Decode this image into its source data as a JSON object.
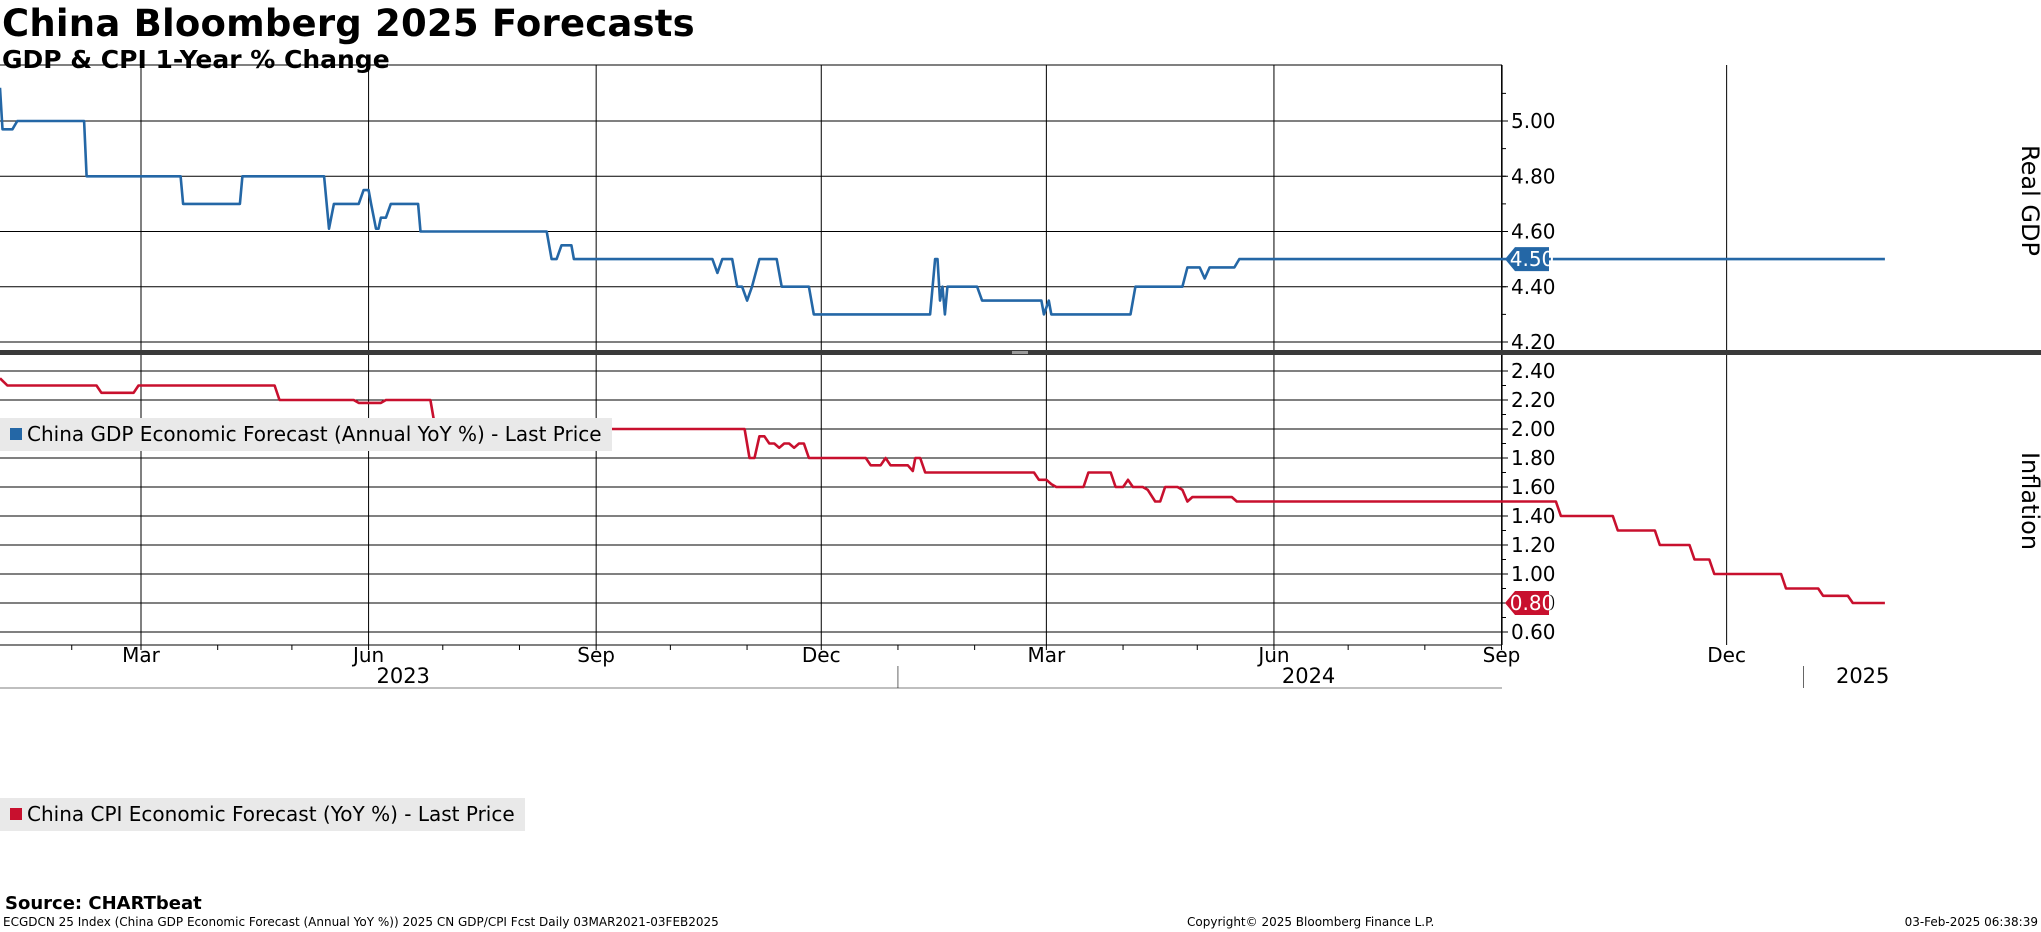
{
  "title": "China Bloomberg 2025 Forecasts",
  "subtitle": "GDP & CPI 1-Year % Change",
  "source": "Source: CHARTbeat",
  "footer": {
    "left": "ECGDCN 25 Index (China GDP Economic Forecast (Annual YoY %)) 2025 CN GDP/CPI Fcst  Daily 03MAR2021-03FEB2025",
    "center": "Copyright© 2025 Bloomberg Finance L.P.",
    "right": "03-Feb-2025 06:38:39"
  },
  "colors": {
    "gdp": "#2467a6",
    "cpi": "#c8102e",
    "legend_bg": "#e9e9e9",
    "grid": "#000000"
  },
  "chart_data": [
    {
      "type": "line",
      "ylabel": "Real GDP",
      "ylim": [
        4.17,
        5.2
      ],
      "yticks": [
        "4.20",
        "4.40",
        "4.60",
        "4.80",
        "5.00"
      ],
      "legend": "China GDP Economic Forecast (Annual YoY %) - Last Price",
      "last_value": "4.50",
      "series": [
        {
          "name": "China GDP Economic Forecast (Annual YoY %) - Last Price",
          "points": [
            [
              "2023-01-03",
              5.12
            ],
            [
              "2023-01-04",
              4.97
            ],
            [
              "2023-01-08",
              4.97
            ],
            [
              "2023-01-10",
              5.0
            ],
            [
              "2023-02-06",
              5.0
            ],
            [
              "2023-02-07",
              4.8
            ],
            [
              "2023-03-17",
              4.8
            ],
            [
              "2023-03-18",
              4.7
            ],
            [
              "2023-04-10",
              4.7
            ],
            [
              "2023-04-11",
              4.8
            ],
            [
              "2023-05-14",
              4.8
            ],
            [
              "2023-05-16",
              4.61
            ],
            [
              "2023-05-18",
              4.7
            ],
            [
              "2023-05-28",
              4.7
            ],
            [
              "2023-05-30",
              4.75
            ],
            [
              "2023-06-01",
              4.75
            ],
            [
              "2023-06-02",
              4.7
            ],
            [
              "2023-06-04",
              4.61
            ],
            [
              "2023-06-05",
              4.61
            ],
            [
              "2023-06-06",
              4.65
            ],
            [
              "2023-06-08",
              4.65
            ],
            [
              "2023-06-10",
              4.7
            ],
            [
              "2023-06-21",
              4.7
            ],
            [
              "2023-06-22",
              4.6
            ],
            [
              "2023-08-12",
              4.6
            ],
            [
              "2023-08-14",
              4.5
            ],
            [
              "2023-08-16",
              4.5
            ],
            [
              "2023-08-18",
              4.55
            ],
            [
              "2023-08-22",
              4.55
            ],
            [
              "2023-08-23",
              4.5
            ],
            [
              "2023-10-18",
              4.5
            ],
            [
              "2023-10-20",
              4.45
            ],
            [
              "2023-10-22",
              4.5
            ],
            [
              "2023-10-26",
              4.5
            ],
            [
              "2023-10-28",
              4.4
            ],
            [
              "2023-10-30",
              4.4
            ],
            [
              "2023-11-01",
              4.35
            ],
            [
              "2023-11-03",
              4.4
            ],
            [
              "2023-11-06",
              4.5
            ],
            [
              "2023-11-13",
              4.5
            ],
            [
              "2023-11-15",
              4.4
            ],
            [
              "2023-11-26",
              4.4
            ],
            [
              "2023-11-28",
              4.3
            ],
            [
              "2024-01-14",
              4.3
            ],
            [
              "2024-01-16",
              4.5
            ],
            [
              "2024-01-17",
              4.5
            ],
            [
              "2024-01-18",
              4.35
            ],
            [
              "2024-01-19",
              4.4
            ],
            [
              "2024-01-20",
              4.3
            ],
            [
              "2024-01-21",
              4.4
            ],
            [
              "2024-02-02",
              4.4
            ],
            [
              "2024-02-04",
              4.35
            ],
            [
              "2024-02-28",
              4.35
            ],
            [
              "2024-02-29",
              4.3
            ],
            [
              "2024-03-02",
              4.35
            ],
            [
              "2024-03-03",
              4.3
            ],
            [
              "2024-04-04",
              4.3
            ],
            [
              "2024-04-06",
              4.4
            ],
            [
              "2024-04-25",
              4.4
            ],
            [
              "2024-04-27",
              4.47
            ],
            [
              "2024-05-02",
              4.47
            ],
            [
              "2024-05-04",
              4.43
            ],
            [
              "2024-05-06",
              4.47
            ],
            [
              "2024-05-16",
              4.47
            ],
            [
              "2024-05-18",
              4.5
            ],
            [
              "2025-02-03",
              4.5
            ]
          ]
        }
      ]
    },
    {
      "type": "line",
      "ylabel": "Inflation",
      "ylim": [
        0.57,
        2.48
      ],
      "yticks": [
        "0.60",
        "0.80",
        "1.00",
        "1.20",
        "1.40",
        "1.60",
        "1.80",
        "2.00",
        "2.20",
        "2.40"
      ],
      "legend": "China CPI Economic Forecast (YoY %) - Last Price",
      "last_value": "0.80",
      "series": [
        {
          "name": "China CPI Economic Forecast (YoY %) - Last Price",
          "points": [
            [
              "2023-01-03",
              2.35
            ],
            [
              "2023-01-06",
              2.3
            ],
            [
              "2023-02-11",
              2.3
            ],
            [
              "2023-02-13",
              2.25
            ],
            [
              "2023-02-26",
              2.25
            ],
            [
              "2023-02-28",
              2.3
            ],
            [
              "2023-04-24",
              2.3
            ],
            [
              "2023-04-26",
              2.2
            ],
            [
              "2023-05-26",
              2.2
            ],
            [
              "2023-05-28",
              2.18
            ],
            [
              "2023-06-06",
              2.18
            ],
            [
              "2023-06-08",
              2.2
            ],
            [
              "2023-06-26",
              2.2
            ],
            [
              "2023-06-28",
              2.0
            ],
            [
              "2023-10-31",
              2.0
            ],
            [
              "2023-11-02",
              1.8
            ],
            [
              "2023-11-04",
              1.8
            ],
            [
              "2023-11-06",
              1.95
            ],
            [
              "2023-11-08",
              1.95
            ],
            [
              "2023-11-10",
              1.9
            ],
            [
              "2023-11-12",
              1.9
            ],
            [
              "2023-11-14",
              1.87
            ],
            [
              "2023-11-16",
              1.9
            ],
            [
              "2023-11-18",
              1.9
            ],
            [
              "2023-11-20",
              1.87
            ],
            [
              "2023-11-22",
              1.9
            ],
            [
              "2023-11-24",
              1.9
            ],
            [
              "2023-11-26",
              1.8
            ],
            [
              "2023-12-19",
              1.8
            ],
            [
              "2023-12-21",
              1.75
            ],
            [
              "2023-12-25",
              1.75
            ],
            [
              "2023-12-27",
              1.8
            ],
            [
              "2023-12-29",
              1.75
            ],
            [
              "2024-01-05",
              1.75
            ],
            [
              "2024-01-07",
              1.71
            ],
            [
              "2024-01-08",
              1.8
            ],
            [
              "2024-01-10",
              1.8
            ],
            [
              "2024-01-12",
              1.7
            ],
            [
              "2024-02-25",
              1.7
            ],
            [
              "2024-02-27",
              1.65
            ],
            [
              "2024-03-01",
              1.65
            ],
            [
              "2024-03-03",
              1.62
            ],
            [
              "2024-03-05",
              1.6
            ],
            [
              "2024-03-16",
              1.6
            ],
            [
              "2024-03-18",
              1.7
            ],
            [
              "2024-03-27",
              1.7
            ],
            [
              "2024-03-29",
              1.6
            ],
            [
              "2024-04-01",
              1.6
            ],
            [
              "2024-04-03",
              1.65
            ],
            [
              "2024-04-05",
              1.6
            ],
            [
              "2024-04-09",
              1.6
            ],
            [
              "2024-04-11",
              1.58
            ],
            [
              "2024-04-14",
              1.5
            ],
            [
              "2024-04-16",
              1.5
            ],
            [
              "2024-04-18",
              1.6
            ],
            [
              "2024-04-23",
              1.6
            ],
            [
              "2024-04-25",
              1.58
            ],
            [
              "2024-04-27",
              1.5
            ],
            [
              "2024-04-29",
              1.53
            ],
            [
              "2024-05-15",
              1.53
            ],
            [
              "2024-05-17",
              1.5
            ],
            [
              "2024-09-23",
              1.5
            ],
            [
              "2024-09-25",
              1.4
            ],
            [
              "2024-10-16",
              1.4
            ],
            [
              "2024-10-18",
              1.3
            ],
            [
              "2024-11-02",
              1.3
            ],
            [
              "2024-11-04",
              1.2
            ],
            [
              "2024-11-16",
              1.2
            ],
            [
              "2024-11-18",
              1.1
            ],
            [
              "2024-11-24",
              1.1
            ],
            [
              "2024-11-26",
              1.0
            ],
            [
              "2024-12-23",
              1.0
            ],
            [
              "2024-12-25",
              0.9
            ],
            [
              "2025-01-07",
              0.9
            ],
            [
              "2025-01-09",
              0.85
            ],
            [
              "2025-01-19",
              0.85
            ],
            [
              "2025-01-21",
              0.8
            ],
            [
              "2025-02-03",
              0.8
            ]
          ]
        }
      ]
    }
  ],
  "x_axis": {
    "month_ticks": [
      {
        "date": "2023-03-01",
        "label": "Mar"
      },
      {
        "date": "2023-06-01",
        "label": "Jun"
      },
      {
        "date": "2023-09-01",
        "label": "Sep"
      },
      {
        "date": "2023-12-01",
        "label": "Dec"
      },
      {
        "date": "2024-03-01",
        "label": "Mar"
      },
      {
        "date": "2024-06-01",
        "label": "Jun"
      },
      {
        "date": "2024-09-01",
        "label": "Sep"
      },
      {
        "date": "2024-12-01",
        "label": "Dec"
      }
    ],
    "years": [
      "2023",
      "2024",
      "2025"
    ],
    "year_starts": [
      "2024-01-01",
      "2025-01-01"
    ]
  }
}
